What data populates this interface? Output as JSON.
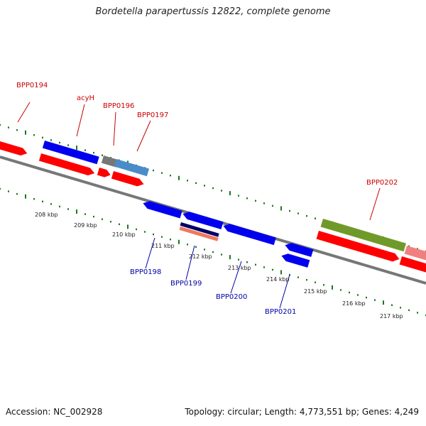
{
  "title": "Bordetella parapertussis 12822, complete genome",
  "accession": "Accession: NC_002928",
  "topology": "Topology: circular; Length: 4,773,551 bp; Genes: 4,249",
  "gene_labels_top": [
    "BPP0194",
    "acyH",
    "BPP0196",
    "BPP0197",
    "BPP0202"
  ],
  "gene_labels_bottom": [
    "BPP0198",
    "BPP0199",
    "BPP0200",
    "BPP0201"
  ],
  "kbp_labels": [
    "208 kbp",
    "209 kbp",
    "210 kbp",
    "211 kbp",
    "212 kbp",
    "213 kbp",
    "214 kbp",
    "215 kbp",
    "216 kbp",
    "217 kbp"
  ],
  "colors": {
    "cds_red": "#ff0000",
    "cds_blue": "#0000ee",
    "gray": "#777777",
    "steelblue": "#4a8cc8",
    "olive": "#6f9a2a",
    "pink": "#f08080",
    "navy": "#000066",
    "salmon": "#f07860",
    "dots": "#1a7a1a"
  }
}
